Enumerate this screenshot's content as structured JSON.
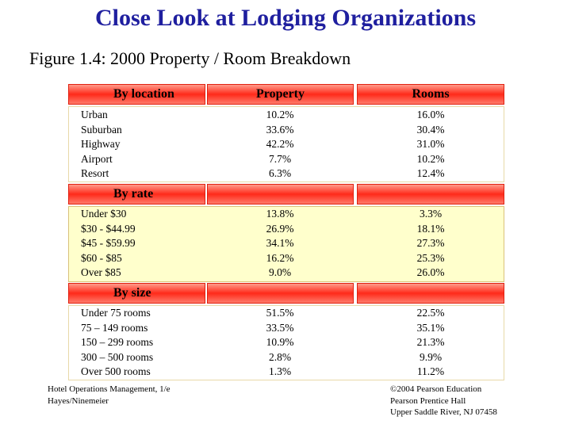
{
  "title": "Close Look at Lodging Organizations",
  "subtitle": "Figure 1.4: 2000 Property / Room Breakdown",
  "columns": {
    "property": "Property",
    "rooms": "Rooms"
  },
  "sections": [
    {
      "heading": "By location",
      "labels": [
        "Urban",
        "Suburban",
        "Highway",
        "Airport",
        "Resort"
      ],
      "property": [
        "10.2%",
        "33.6%",
        "42.2%",
        "7.7%",
        "6.3%"
      ],
      "rooms": [
        "16.0%",
        "30.4%",
        "31.0%",
        "10.2%",
        "12.4%"
      ]
    },
    {
      "heading": "By rate",
      "labels": [
        "Under $30",
        "$30 - $44.99",
        "$45 - $59.99",
        "$60 - $85",
        "Over $85"
      ],
      "property": [
        "13.8%",
        "26.9%",
        "34.1%",
        "16.2%",
        "9.0%"
      ],
      "rooms": [
        "3.3%",
        "18.1%",
        "27.3%",
        "25.3%",
        "26.0%"
      ]
    },
    {
      "heading": "By size",
      "labels": [
        "Under 75 rooms",
        "75 – 149 rooms",
        "150 – 299 rooms",
        "300 – 500 rooms",
        "Over 500 rooms"
      ],
      "property": [
        "51.5%",
        "33.5%",
        "10.9%",
        "2.8%",
        "1.3%"
      ],
      "rooms": [
        "22.5%",
        "35.1%",
        "21.3%",
        "9.9%",
        "11.2%"
      ]
    }
  ],
  "footer": {
    "left": [
      "Hotel Operations Management, 1/e",
      "Hayes/Ninemeier"
    ],
    "right": [
      "©2004 Pearson Education",
      "Pearson Prentice Hall",
      "Upper Saddle River, NJ 07458"
    ]
  }
}
